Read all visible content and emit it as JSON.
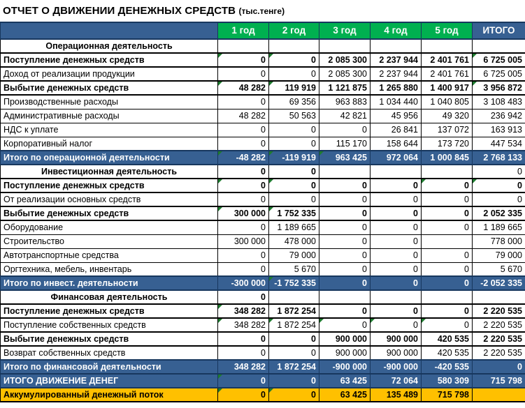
{
  "title": "ОТЧЕТ О ДВИЖЕНИИ ДЕНЕЖНЫХ СРЕДСТВ",
  "title_unit": "(тыс.тенге)",
  "columns": [
    "1 год",
    "2 год",
    "3 год",
    "4 год",
    "5 год",
    "ИТОГО"
  ],
  "colors": {
    "header_blue": "#376092",
    "header_green": "#00B050",
    "total_blue": "#376092",
    "accum_yellow": "#FFC000",
    "triangle_green": "#1E7B2F"
  },
  "rows": [
    {
      "label": "Операционная деятельность",
      "type": "section",
      "values": [
        "",
        "",
        "",
        "",
        "",
        ""
      ]
    },
    {
      "label": "Поступление денежных средств",
      "type": "bold",
      "values": [
        "0",
        "0",
        "2 085 300",
        "2 237 944",
        "2 401 761",
        "6 725 005"
      ],
      "tri": [
        0,
        1,
        5
      ]
    },
    {
      "label": "Доход от реализации продукции",
      "type": "normal",
      "values": [
        "0",
        "0",
        "2 085 300",
        "2 237 944",
        "2 401 761",
        "6 725 005"
      ]
    },
    {
      "label": "Выбытие денежных средств",
      "type": "bold",
      "values": [
        "48 282",
        "119 919",
        "1 121 875",
        "1 265 880",
        "1 400 917",
        "3 956 872"
      ],
      "tri": [
        0,
        1,
        5
      ]
    },
    {
      "label": "Производственные расходы",
      "type": "normal",
      "values": [
        "0",
        "69 356",
        "963 883",
        "1 034 440",
        "1 040 805",
        "3 108 483"
      ]
    },
    {
      "label": "Административные расходы",
      "type": "normal",
      "values": [
        "48 282",
        "50 563",
        "42 821",
        "45 956",
        "49 320",
        "236 942"
      ]
    },
    {
      "label": "НДС к уплате",
      "type": "normal",
      "values": [
        "0",
        "0",
        "0",
        "26 841",
        "137 072",
        "163 913"
      ]
    },
    {
      "label": "Корпоративный налог",
      "type": "normal",
      "values": [
        "0",
        "0",
        "115 170",
        "158 644",
        "173 720",
        "447 534"
      ]
    },
    {
      "label": "Итого по операционной деятельности",
      "type": "total",
      "values": [
        "-48 282",
        "-119 919",
        "963 425",
        "972 064",
        "1 000 845",
        "2 768 133"
      ],
      "tri": [
        0,
        1,
        2
      ]
    },
    {
      "label": "Инвестиционная деятельность",
      "type": "section",
      "values": [
        "0",
        "0",
        "",
        "",
        "",
        "0"
      ]
    },
    {
      "label": "Поступление денежных средств",
      "type": "bold",
      "values": [
        "0",
        "0",
        "0",
        "0",
        "0",
        "0"
      ],
      "tri": [
        0,
        1,
        4,
        5
      ]
    },
    {
      "label": "От реализации основных средств",
      "type": "normal",
      "values": [
        "0",
        "0",
        "0",
        "0",
        "0",
        "0"
      ]
    },
    {
      "label": "Выбытие денежных средств",
      "type": "bold",
      "values": [
        "300 000",
        "1 752 335",
        "0",
        "0",
        "0",
        "2 052 335"
      ],
      "tri": [
        0,
        1
      ]
    },
    {
      "label": "Оборудование",
      "type": "normal",
      "values": [
        "0",
        "1 189 665",
        "0",
        "0",
        "0",
        "1 189 665"
      ]
    },
    {
      "label": "Строительство",
      "type": "normal",
      "values": [
        "300 000",
        "478 000",
        "0",
        "0",
        "",
        "778 000"
      ]
    },
    {
      "label": "Автотранспортные средства",
      "type": "normal",
      "values": [
        "0",
        "79 000",
        "0",
        "0",
        "0",
        "79 000"
      ]
    },
    {
      "label": "Оргтехника, мебель, инвентарь",
      "type": "normal",
      "values": [
        "0",
        "5 670",
        "0",
        "0",
        "0",
        "5 670"
      ]
    },
    {
      "label": "Итого по инвест. деятельности",
      "type": "total",
      "values": [
        "-300 000",
        "-1 752 335",
        "0",
        "0",
        "0",
        "-2 052 335"
      ],
      "tri": [
        1
      ]
    },
    {
      "label": "Финансовая деятельность",
      "type": "section",
      "values": [
        "0",
        "",
        "",
        "",
        "",
        ""
      ]
    },
    {
      "label": "Поступление денежных средств",
      "type": "bold",
      "values": [
        "348 282",
        "1 872 254",
        "0",
        "0",
        "0",
        "2 220 535"
      ],
      "tri": [
        0
      ]
    },
    {
      "label": "Поступление собственных средств",
      "type": "normal",
      "values": [
        "348 282",
        "1 872 254",
        "0",
        "0",
        "0",
        "2 220 535"
      ],
      "tri": [
        0,
        1,
        2,
        3,
        4
      ]
    },
    {
      "label": "Выбытие денежных средств",
      "type": "bold",
      "values": [
        "0",
        "0",
        "900 000",
        "900 000",
        "420 535",
        "2 220 535"
      ]
    },
    {
      "label": "Возврат  собственных средств",
      "type": "normal",
      "values": [
        "0",
        "0",
        "900 000",
        "900 000",
        "420 535",
        "2 220 535"
      ]
    },
    {
      "label": "Итого по финансовой деятельности",
      "type": "total",
      "values": [
        "348 282",
        "1 872 254",
        "-900 000",
        "-900 000",
        "-420 535",
        "0"
      ]
    },
    {
      "label": "ИТОГО ДВИЖЕНИЕ ДЕНЕГ",
      "type": "total",
      "values": [
        "0",
        "0",
        "63 425",
        "72 064",
        "580 309",
        "715 798"
      ],
      "tri": [
        0
      ]
    },
    {
      "label": "Аккумулированный денежный поток",
      "type": "accum",
      "values": [
        "0",
        "0",
        "63 425",
        "135 489",
        "715 798",
        ""
      ],
      "tri": [
        0,
        1
      ]
    }
  ]
}
